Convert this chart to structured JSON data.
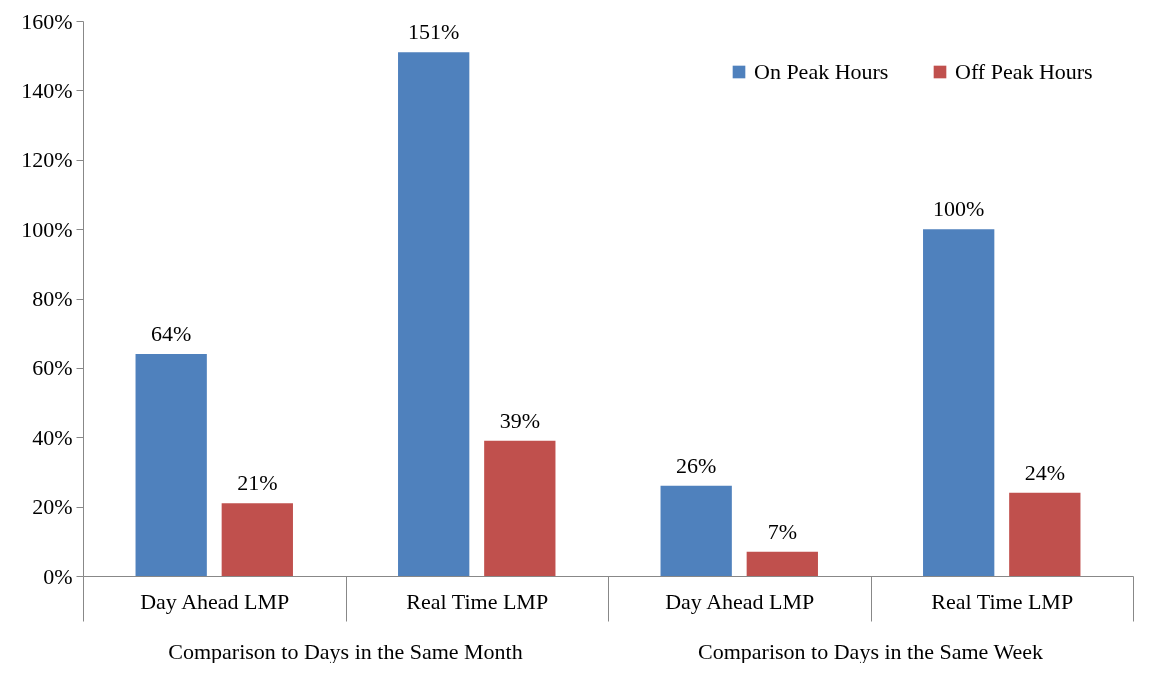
{
  "chart_data": {
    "type": "bar",
    "categories": [
      "Day Ahead LMP",
      "Real Time LMP",
      "Day Ahead LMP",
      "Real Time LMP"
    ],
    "series": [
      {
        "name": "On Peak Hours",
        "color": "#4f81bd",
        "values": [
          64,
          151,
          26,
          100
        ],
        "value_labels": [
          "64%",
          "151%",
          "26%",
          "100%"
        ]
      },
      {
        "name": "Off Peak Hours",
        "color": "#c0504d",
        "values": [
          21,
          39,
          7,
          24
        ],
        "value_labels": [
          "21%",
          "39%",
          "7%",
          "24%"
        ]
      }
    ],
    "annotations": [
      "Comparison to Days in the Same Month",
      "Comparison to Days in the Same Week"
    ],
    "ylim": [
      0,
      160
    ],
    "yticks": [
      {
        "value": 0,
        "label": "0%"
      },
      {
        "value": 20,
        "label": "20%"
      },
      {
        "value": 40,
        "label": "40%"
      },
      {
        "value": 60,
        "label": "60%"
      },
      {
        "value": 80,
        "label": "80%"
      },
      {
        "value": 100,
        "label": "100%"
      },
      {
        "value": 120,
        "label": "120%"
      },
      {
        "value": 140,
        "label": "140%"
      },
      {
        "value": 160,
        "label": "160%"
      }
    ],
    "grid": false,
    "legend": "top right"
  }
}
